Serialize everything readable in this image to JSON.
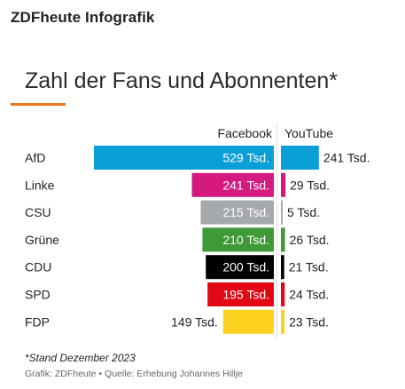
{
  "header": {
    "brand": "ZDFheute Infografik"
  },
  "chart_data": {
    "type": "bar",
    "title": "Zahl der Fans und Abonnenten*",
    "categories": [
      "AfD",
      "Linke",
      "CSU",
      "Grüne",
      "CDU",
      "SPD",
      "FDP"
    ],
    "series": [
      {
        "name": "Facebook",
        "unit": "Tsd.",
        "values": [
          529,
          241,
          215,
          210,
          200,
          195,
          149
        ],
        "labels": [
          "529 Tsd.",
          "241 Tsd.",
          "215 Tsd.",
          "210 Tsd.",
          "200 Tsd.",
          "195 Tsd.",
          "149 Tsd."
        ]
      },
      {
        "name": "YouTube",
        "unit": "Tsd.",
        "values": [
          241,
          29,
          5,
          26,
          21,
          24,
          23
        ],
        "labels": [
          "241 Tsd.",
          "29 Tsd.",
          "5 Tsd.",
          "26 Tsd.",
          "21 Tsd.",
          "24 Tsd.",
          "23 Tsd."
        ]
      }
    ],
    "colors": [
      "#0b9fd8",
      "#d4197f",
      "#a5a9ad",
      "#3d9a36",
      "#000000",
      "#e30613",
      "#fdd21f"
    ],
    "label_colors_inside": [
      "#ffffff",
      "#ffffff",
      "#ffffff",
      "#ffffff",
      "#ffffff",
      "#ffffff",
      "#222222"
    ],
    "xlim": [
      0,
      529
    ]
  },
  "footnote": "*Stand Dezember 2023",
  "source": "Grafik: ZDFheute • Quelle: Erhebung Johannes Hillje"
}
